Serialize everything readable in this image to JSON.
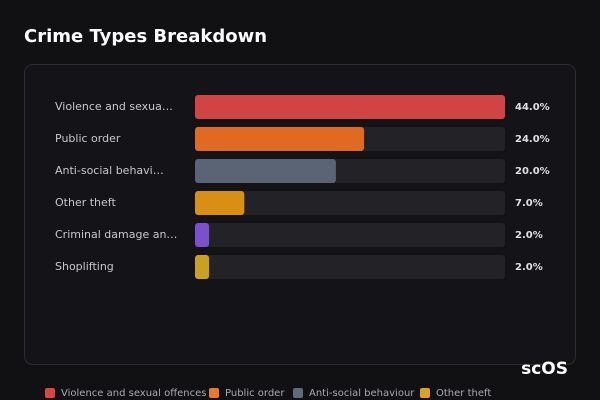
{
  "chart_data": {
    "type": "hbar",
    "title": "Crime Types Breakdown",
    "categories": [
      "Violence and sexua…",
      "Public order",
      "Anti-social behavi…",
      "Other theft",
      "Criminal damage an…",
      "Shoplifting"
    ],
    "values": [
      44,
      24,
      20,
      7,
      2,
      2
    ],
    "value_labels": [
      "44.0%",
      "24.0%",
      "20.0%",
      "7.0%",
      "2.0%",
      "2.0%"
    ],
    "colors": [
      "#d04444",
      "#e06a22",
      "#5a6475",
      "#d98e14",
      "#7a4fd0",
      "#c9a020"
    ],
    "xlim": [
      0,
      44
    ],
    "legend": [
      {
        "name": "Violence and sexual offences",
        "color": "#d94545"
      },
      {
        "name": "Public order",
        "color": "#e8792b"
      },
      {
        "name": "Anti-social behaviour",
        "color": "#5f6b7c"
      },
      {
        "name": "Other theft",
        "color": "#e0a020"
      }
    ],
    "watermark": "scOS"
  }
}
